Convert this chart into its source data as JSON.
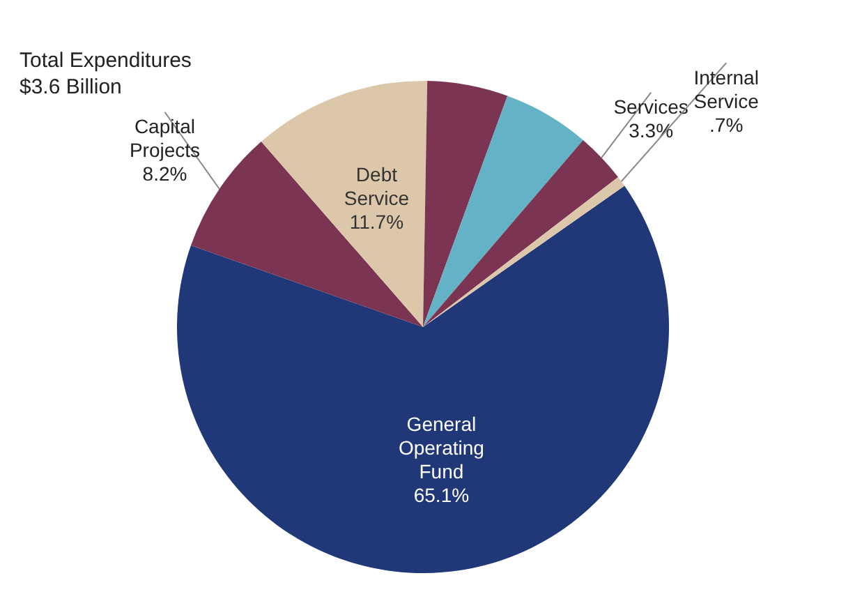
{
  "chart_data": {
    "type": "pie",
    "title": "Total Expenditures",
    "subtitle": "$3.6 Billion",
    "categories": [
      "General Operating Fund",
      "Capital Projects",
      "Debt Service",
      null,
      null,
      "Services",
      "Internal Service"
    ],
    "values": [
      65.1,
      8.2,
      11.7,
      5.3,
      5.7,
      3.3,
      0.7
    ],
    "value_labels": [
      "65.1%",
      "8.2%",
      "11.7%",
      null,
      null,
      "3.3%",
      ".7%"
    ],
    "colors": [
      "#203778",
      "#7b3553",
      "#dcc7ab",
      "#7b3553",
      "#64b2c6",
      "#7b3553",
      "#dcc7ab"
    ],
    "legend": false
  }
}
